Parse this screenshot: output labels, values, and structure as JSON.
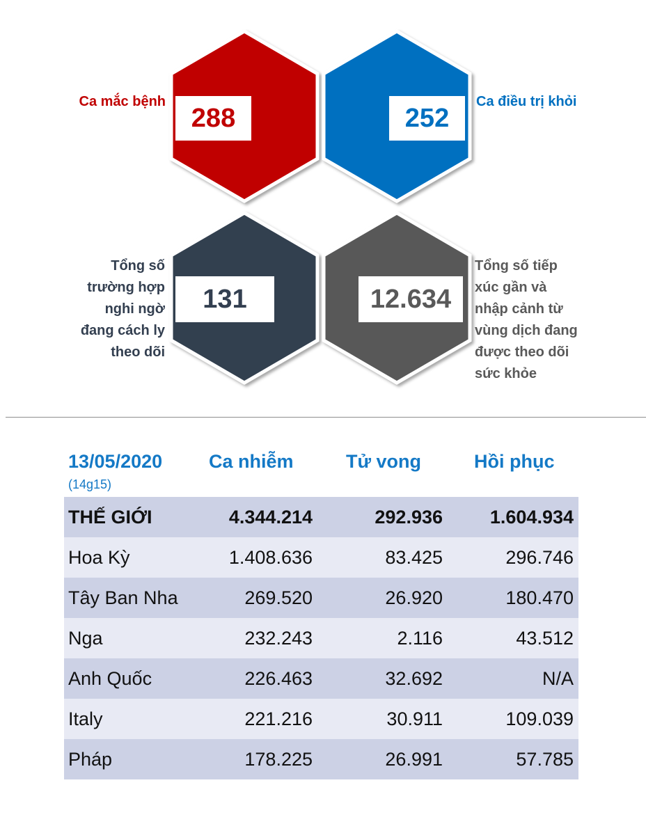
{
  "stats": {
    "cases": {
      "value": "288",
      "label": "Ca mắc bệnh",
      "color": "#c00000"
    },
    "recovered": {
      "value": "252",
      "label": "Ca điều trị khỏi",
      "color": "#0070c0"
    },
    "suspected": {
      "value": "131",
      "label_lines": [
        "Tổng số",
        "trường hợp",
        "nghi ngờ",
        "đang cách ly",
        "theo dõi"
      ],
      "color": "#333f50"
    },
    "monitored": {
      "value": "12.634",
      "label_lines": [
        "Tổng số tiếp",
        "xúc gần và",
        "nhập cảnh từ",
        "vùng dịch đang",
        "được theo dõi",
        "sức khỏe"
      ],
      "color": "#595959"
    }
  },
  "table": {
    "date": "13/05/2020",
    "time": "(14g15)",
    "headers": [
      "Ca nhiễm",
      "Tử vong",
      "Hồi phục"
    ],
    "rows": [
      {
        "name": "THẾ GIỚI",
        "cases": "4.344.214",
        "deaths": "292.936",
        "recovered": "1.604.934"
      },
      {
        "name": "Hoa Kỳ",
        "cases": "1.408.636",
        "deaths": "83.425",
        "recovered": "296.746"
      },
      {
        "name": "Tây Ban Nha",
        "cases": "269.520",
        "deaths": "26.920",
        "recovered": "180.470"
      },
      {
        "name": "Nga",
        "cases": "232.243",
        "deaths": "2.116",
        "recovered": "43.512"
      },
      {
        "name": "Anh Quốc",
        "cases": "226.463",
        "deaths": "32.692",
        "recovered": "N/A"
      },
      {
        "name": "Italy",
        "cases": "221.216",
        "deaths": "30.911",
        "recovered": "109.039"
      },
      {
        "name": "Pháp",
        "cases": "178.225",
        "deaths": "26.991",
        "recovered": "57.785"
      }
    ],
    "row_colors": [
      "#ccd1e5",
      "#e8eaf4"
    ]
  }
}
